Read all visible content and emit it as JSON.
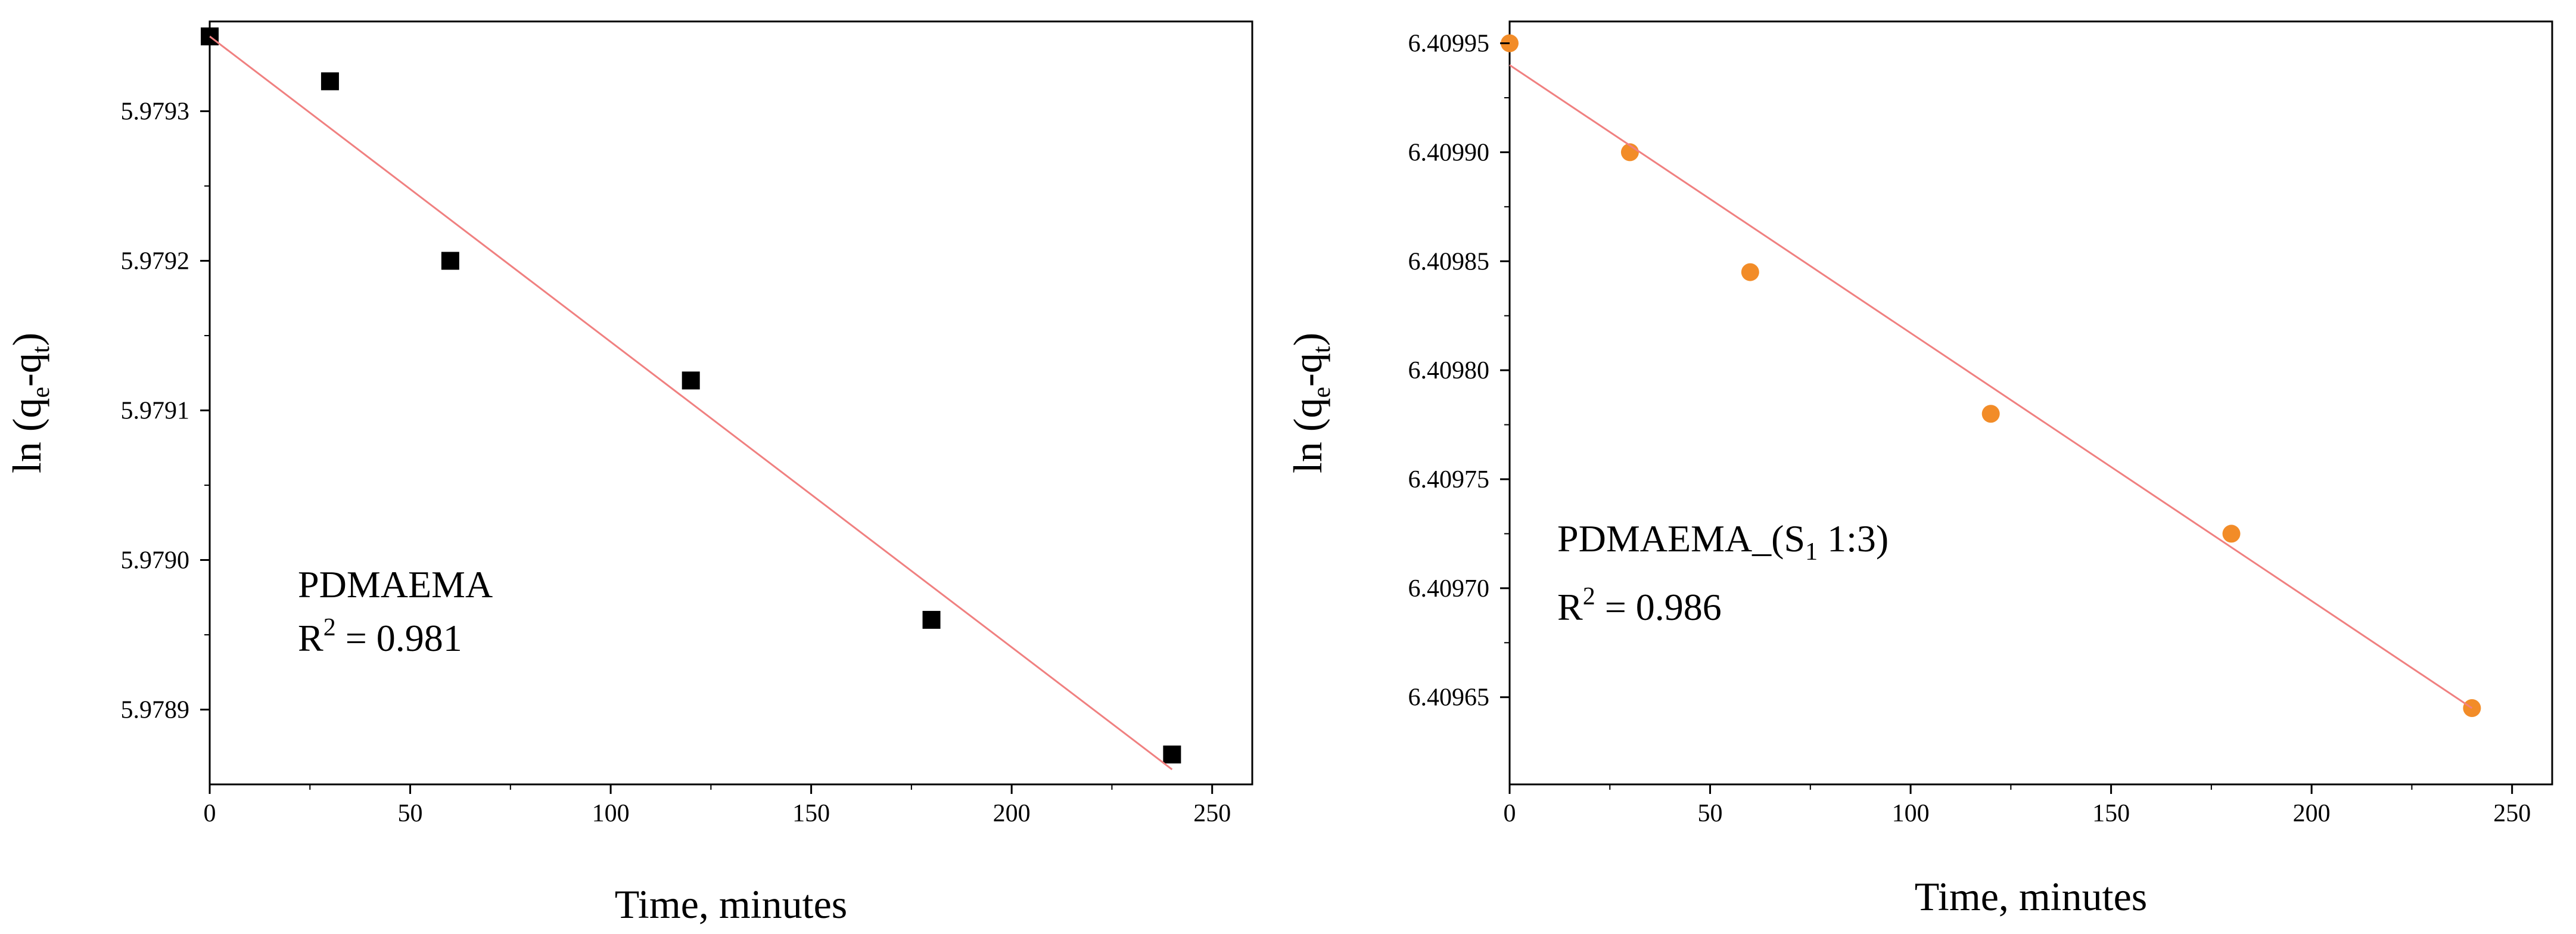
{
  "chart_data": [
    {
      "type": "scatter",
      "title": "",
      "xlabel": "Time, minutes",
      "ylabel": {
        "prefix": "ln (q",
        "sub1": "e",
        "mid": "-q",
        "sub2": "t",
        "suffix": ")"
      },
      "xlim": [
        0,
        260
      ],
      "ylim": [
        5.97885,
        5.97936
      ],
      "xticks": [
        0,
        50,
        100,
        150,
        200,
        250
      ],
      "xtick_labels": [
        "0",
        "50",
        "100",
        "150",
        "200",
        "250"
      ],
      "yticks": [
        5.9789,
        5.979,
        5.9791,
        5.9792,
        5.9793
      ],
      "ytick_labels": [
        "5.9789",
        "5.9790",
        "5.9791",
        "5.9792",
        "5.9793"
      ],
      "grid": false,
      "marker": "square",
      "marker_color": "#000000",
      "fit_color": "#f08080",
      "series": [
        {
          "name": "PDMAEMA",
          "x": [
            0,
            30,
            60,
            120,
            180,
            240
          ],
          "y": [
            5.97935,
            5.97932,
            5.9792,
            5.97912,
            5.97896,
            5.97887
          ]
        }
      ],
      "fit_line": {
        "x": [
          0,
          240
        ],
        "y": [
          5.97935,
          5.97886
        ]
      },
      "annotation": {
        "name": "PDMAEMA",
        "r2_label": "R",
        "r2_sup": "2",
        "r2_value": " = 0.981"
      }
    },
    {
      "type": "scatter",
      "title": "",
      "xlabel": "Time, minutes",
      "ylabel": {
        "prefix": "ln (q",
        "sub1": "e",
        "mid": "-q",
        "sub2": "t",
        "suffix": ")"
      },
      "xlim": [
        0,
        260
      ],
      "ylim": [
        6.40961,
        6.40996
      ],
      "xticks": [
        0,
        50,
        100,
        150,
        200,
        250
      ],
      "xtick_labels": [
        "0",
        "50",
        "100",
        "150",
        "200",
        "250"
      ],
      "yticks": [
        6.40965,
        6.4097,
        6.40975,
        6.4098,
        6.40985,
        6.4099,
        6.40995
      ],
      "ytick_labels": [
        "6.40965",
        "6.40970",
        "6.40975",
        "6.40980",
        "6.40985",
        "6.40990",
        "6.40995"
      ],
      "grid": false,
      "marker": "circle",
      "marker_color": "#f28c28",
      "fit_color": "#f08080",
      "series": [
        {
          "name": "PDMAEMA_(S1 1:3)",
          "x": [
            0,
            30,
            60,
            120,
            180,
            240
          ],
          "y": [
            6.40995,
            6.4099,
            6.409845,
            6.40978,
            6.409725,
            6.409645
          ]
        }
      ],
      "fit_line": {
        "x": [
          0,
          240
        ],
        "y": [
          6.40994,
          6.409645
        ]
      },
      "annotation": {
        "name_prefix": "PDMAEMA_(S",
        "name_sub": "1",
        "name_suffix": " 1:3)",
        "r2_label": "R",
        "r2_sup": "2",
        "r2_value": " = 0.986"
      }
    }
  ]
}
